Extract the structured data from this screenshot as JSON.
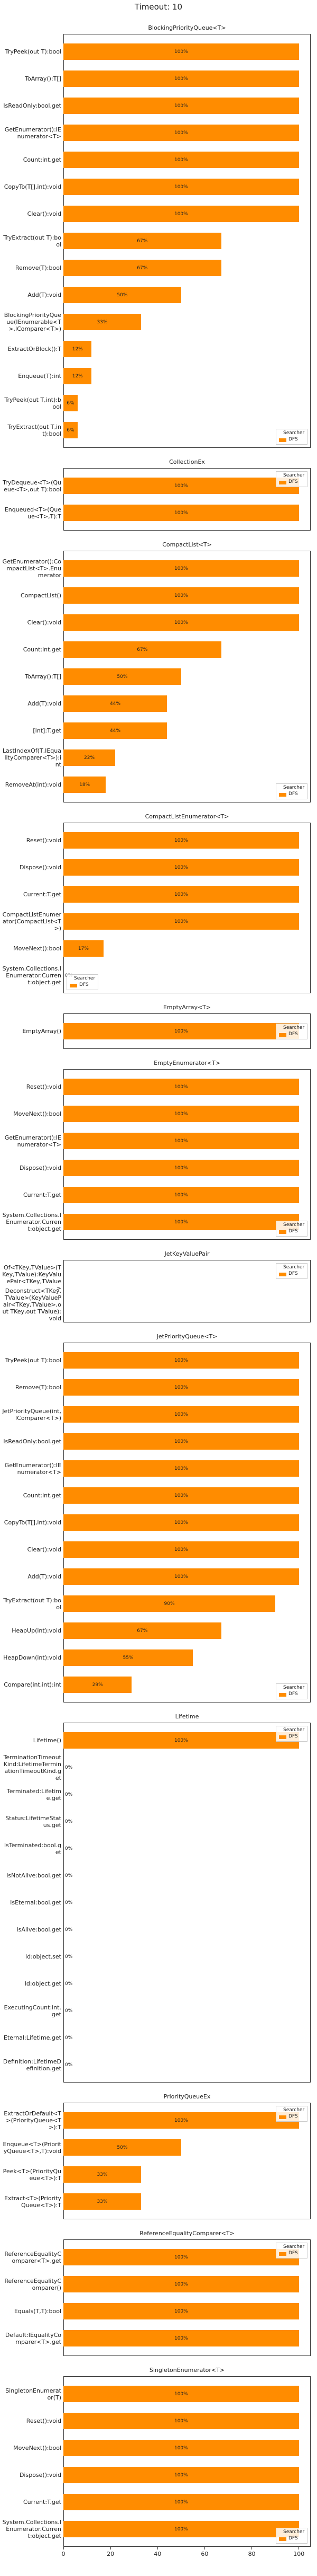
{
  "title": "Timeout: 10",
  "chart_data": [
    {
      "type": "bar",
      "orientation": "horizontal",
      "title": "BlockingPriorityQueue<T>",
      "legend_title": "Searcher",
      "legend": "lower right",
      "xlim": [
        0,
        105
      ],
      "categories": [
        "TryPeek(out T):bool",
        "ToArray():T[]",
        "IsReadOnly:bool.get",
        "GetEnumerator():IEnumerator<T>",
        "Count:int.get",
        "CopyTo(T[],int):void",
        "Clear():void",
        "TryExtract(out T):bool",
        "Remove(T):bool",
        "Add(T):void",
        "BlockingPriorityQueue(IEnumerable<T>,IComparer<T>)",
        "ExtractOrBlock():T",
        "Enqueue(T):int",
        "TryPeek(out T,int):bool",
        "TryExtract(out T,int):bool"
      ],
      "series": [
        {
          "name": "DFS",
          "color": "#ff8c00",
          "values": [
            100,
            100,
            100,
            100,
            100,
            100,
            100,
            67,
            67,
            50,
            33,
            12,
            12,
            6,
            6
          ],
          "value_labels": [
            "100%",
            "100%",
            "100%",
            "100%",
            "100%",
            "100%",
            "100%",
            "67%",
            "67%",
            "50%",
            "33%",
            "12%",
            "12%",
            "6%",
            "6%"
          ]
        }
      ]
    },
    {
      "type": "bar",
      "orientation": "horizontal",
      "title": "CollectionEx",
      "legend_title": "Searcher",
      "legend": "upper right",
      "xlim": [
        0,
        105
      ],
      "categories": [
        "TryDequeue<T>(Queue<T>,out T):bool",
        "Enqueued<T>(Queue<T>,T):T"
      ],
      "series": [
        {
          "name": "DFS",
          "color": "#ff8c00",
          "values": [
            100,
            100
          ],
          "value_labels": [
            "100%",
            "100%"
          ]
        }
      ]
    },
    {
      "type": "bar",
      "orientation": "horizontal",
      "title": "CompactList<T>",
      "legend_title": "Searcher",
      "legend": "lower right",
      "xlim": [
        0,
        105
      ],
      "categories": [
        "GetEnumerator():CompactList<T>.Enumerator",
        "CompactList()",
        "Clear():void",
        "Count:int.get",
        "ToArray():T[]",
        "Add(T):void",
        "[int]:T.get",
        "LastIndexOf(T,IEqualityComparer<T>):int",
        "RemoveAt(int):void"
      ],
      "series": [
        {
          "name": "DFS",
          "color": "#ff8c00",
          "values": [
            100,
            100,
            100,
            67,
            50,
            44,
            44,
            22,
            18
          ],
          "value_labels": [
            "100%",
            "100%",
            "100%",
            "67%",
            "50%",
            "44%",
            "44%",
            "22%",
            "18%"
          ]
        }
      ]
    },
    {
      "type": "bar",
      "orientation": "horizontal",
      "title": "CompactListEnumerator<T>",
      "legend_title": "Searcher",
      "legend": "lower left",
      "xlim": [
        0,
        105
      ],
      "categories": [
        "Reset():void",
        "Dispose():void",
        "Current:T.get",
        "CompactListEnumerator(CompactList<T>)",
        "MoveNext():bool",
        "System.Collections.IEnumerator.Current:object.get"
      ],
      "series": [
        {
          "name": "DFS",
          "color": "#ff8c00",
          "values": [
            100,
            100,
            100,
            100,
            17,
            0
          ],
          "value_labels": [
            "100%",
            "100%",
            "100%",
            "100%",
            "17%",
            "0%"
          ]
        }
      ]
    },
    {
      "type": "bar",
      "orientation": "horizontal",
      "title": "EmptyArray<T>",
      "legend_title": "Searcher",
      "legend": "right",
      "xlim": [
        0,
        105
      ],
      "categories": [
        "EmptyArray()"
      ],
      "series": [
        {
          "name": "DFS",
          "color": "#ff8c00",
          "values": [
            100
          ],
          "value_labels": [
            "100%"
          ]
        }
      ]
    },
    {
      "type": "bar",
      "orientation": "horizontal",
      "title": "EmptyEnumerator<T>",
      "legend_title": "Searcher",
      "legend": "lower right",
      "xlim": [
        0,
        105
      ],
      "categories": [
        "Reset():void",
        "MoveNext():bool",
        "GetEnumerator():IEnumerator<T>",
        "Dispose():void",
        "Current:T.get",
        "System.Collections.IEnumerator.Current:object.get"
      ],
      "series": [
        {
          "name": "DFS",
          "color": "#ff8c00",
          "values": [
            100,
            100,
            100,
            100,
            100,
            100
          ],
          "value_labels": [
            "100%",
            "100%",
            "100%",
            "100%",
            "100%",
            "100%"
          ]
        }
      ]
    },
    {
      "type": "bar",
      "orientation": "horizontal",
      "title": "JetKeyValuePair",
      "legend_title": "Searcher",
      "legend": "upper right",
      "xlim": [
        0,
        105
      ],
      "categories": [
        "Of<TKey,TValue>(TKey,TValue):KeyValuePair<TKey,TValue>",
        "Deconstruct<TKey,TValue>(KeyValuePair<TKey,TValue>,out TKey,out TValue):void"
      ],
      "series": [
        {
          "name": "DFS",
          "color": "#ff8c00",
          "values": [
            null,
            null
          ]
        }
      ]
    },
    {
      "type": "bar",
      "orientation": "horizontal",
      "title": "JetPriorityQueue<T>",
      "legend_title": "Searcher",
      "legend": "lower right",
      "xlim": [
        0,
        105
      ],
      "categories": [
        "TryPeek(out T):bool",
        "Remove(T):bool",
        "JetPriorityQueue(int,IComparer<T>)",
        "IsReadOnly:bool.get",
        "GetEnumerator():IEnumerator<T>",
        "Count:int.get",
        "CopyTo(T[],int):void",
        "Clear():void",
        "Add(T):void",
        "TryExtract(out T):bool",
        "HeapUp(int):void",
        "HeapDown(int):void",
        "Compare(int,int):int"
      ],
      "series": [
        {
          "name": "DFS",
          "color": "#ff8c00",
          "values": [
            100,
            100,
            100,
            100,
            100,
            100,
            100,
            100,
            100,
            90,
            67,
            55,
            29
          ],
          "value_labels": [
            "100%",
            "100%",
            "100%",
            "100%",
            "100%",
            "100%",
            "100%",
            "100%",
            "100%",
            "90%",
            "67%",
            "55%",
            "29%"
          ]
        }
      ]
    },
    {
      "type": "bar",
      "orientation": "horizontal",
      "title": "Lifetime",
      "legend_title": "Searcher",
      "legend": "upper right",
      "xlim": [
        0,
        105
      ],
      "categories": [
        "Lifetime()",
        "TerminationTimeoutKind:LifetimeTerminationTimeoutKind.get",
        "Terminated:Lifetime.get",
        "Status:LifetimeStatus.get",
        "IsTerminated:bool.get",
        "IsNotAlive:bool.get",
        "IsEternal:bool.get",
        "IsAlive:bool.get",
        "Id:object.set",
        "Id:object.get",
        "ExecutingCount:int.get",
        "Eternal:Lifetime.get",
        "Definition:LifetimeDefinition.get"
      ],
      "series": [
        {
          "name": "DFS",
          "color": "#ff8c00",
          "values": [
            100,
            0,
            0,
            0,
            0,
            0,
            0,
            0,
            0,
            0,
            0,
            0,
            0
          ],
          "value_labels": [
            "100%",
            "0%",
            "0%",
            "0%",
            "0%",
            "0%",
            "0%",
            "0%",
            "0%",
            "0%",
            "0%",
            "0%",
            "0%"
          ]
        }
      ]
    },
    {
      "type": "bar",
      "orientation": "horizontal",
      "title": "PriorityQueueEx",
      "legend_title": "Searcher",
      "legend": "upper right",
      "xlim": [
        0,
        105
      ],
      "categories": [
        "ExtractOrDefault<T>(PriorityQueue<T>):T",
        "Enqueue<T>(PriorityQueue<T>,T):void",
        "Peek<T>(PriorityQueue<T>):T",
        "Extract<T>(PriorityQueue<T>):T"
      ],
      "series": [
        {
          "name": "DFS",
          "color": "#ff8c00",
          "values": [
            100,
            50,
            33,
            33
          ],
          "value_labels": [
            "100%",
            "50%",
            "33%",
            "33%"
          ]
        }
      ]
    },
    {
      "type": "bar",
      "orientation": "horizontal",
      "title": "ReferenceEqualityComparer<T>",
      "legend_title": "Searcher",
      "legend": "upper right",
      "xlim": [
        0,
        105
      ],
      "categories": [
        "ReferenceEqualityComparer<T>.get",
        "ReferenceEqualityComparer()",
        "Equals(T,T):bool",
        "Default:IEqualityComparer<T>.get"
      ],
      "series": [
        {
          "name": "DFS",
          "color": "#ff8c00",
          "values": [
            100,
            100,
            100,
            100
          ],
          "value_labels": [
            "100%",
            "100%",
            "100%",
            "100%"
          ]
        }
      ]
    },
    {
      "type": "bar",
      "orientation": "horizontal",
      "title": "SingletonEnumerator<T>",
      "legend_title": "Searcher",
      "legend": "lower right",
      "xlim": [
        0,
        105
      ],
      "xticks": [
        0,
        20,
        40,
        60,
        80,
        100
      ],
      "categories": [
        "SingletonEnumerator(T)",
        "Reset():void",
        "MoveNext():bool",
        "Dispose():void",
        "Current:T.get",
        "System.Collections.IEnumerator.Current:object.get"
      ],
      "series": [
        {
          "name": "DFS",
          "color": "#ff8c00",
          "values": [
            100,
            100,
            100,
            100,
            100,
            100
          ],
          "value_labels": [
            "100%",
            "100%",
            "100%",
            "100%",
            "100%",
            "100%"
          ]
        }
      ]
    }
  ]
}
